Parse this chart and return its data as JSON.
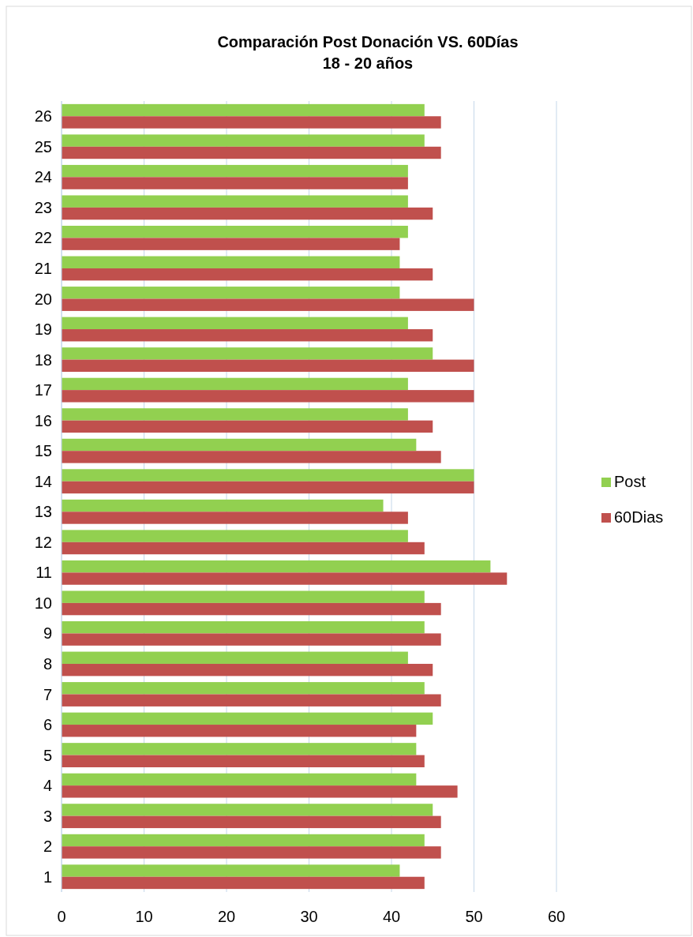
{
  "chart_data": {
    "type": "bar",
    "orientation": "horizontal",
    "title": "Comparación Post Donación VS. 60Días\n18 - 20 años",
    "categories": [
      "26",
      "25",
      "24",
      "23",
      "22",
      "21",
      "20",
      "19",
      "18",
      "17",
      "16",
      "15",
      "14",
      "13",
      "12",
      "11",
      "10",
      "9",
      "8",
      "7",
      "6",
      "5",
      "4",
      "3",
      "2",
      "1"
    ],
    "series": [
      {
        "name": "Post",
        "color": "#92d050",
        "values": [
          44,
          44,
          42,
          42,
          42,
          41,
          41,
          42,
          45,
          42,
          42,
          43,
          50,
          39,
          42,
          52,
          44,
          44,
          42,
          44,
          45,
          43,
          43,
          45,
          44,
          41
        ]
      },
      {
        "name": "60Dias",
        "color": "#c0504d",
        "values": [
          46,
          46,
          42,
          45,
          41,
          45,
          50,
          45,
          50,
          50,
          45,
          46,
          50,
          42,
          44,
          54,
          46,
          46,
          45,
          46,
          43,
          44,
          48,
          46,
          46,
          44
        ]
      }
    ],
    "xlim": [
      0,
      60
    ],
    "xticks": [
      0,
      10,
      20,
      30,
      40,
      50,
      60
    ],
    "grid": "x",
    "legend": "right"
  }
}
